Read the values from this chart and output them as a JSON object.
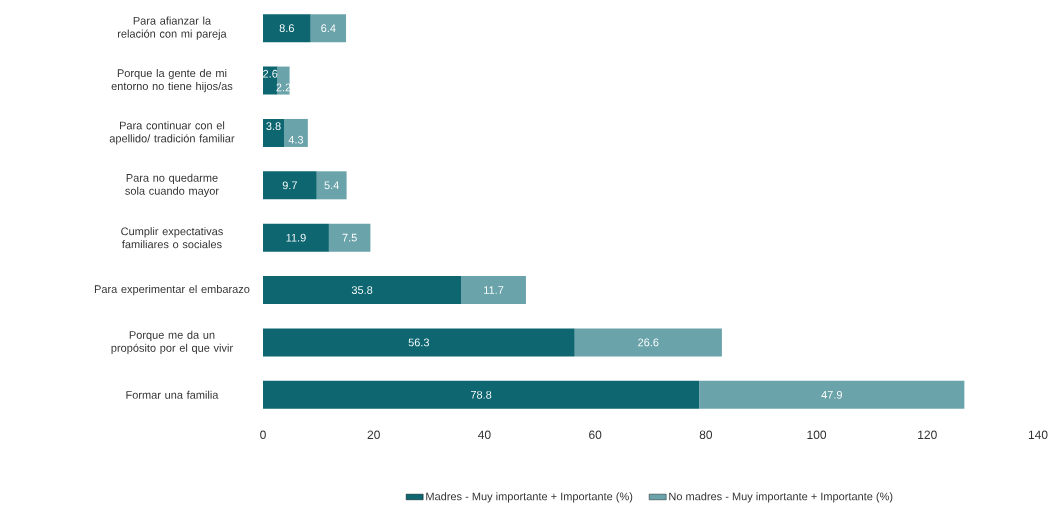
{
  "chart_data": {
    "type": "bar",
    "orientation": "horizontal",
    "stacked": true,
    "categories": [
      "Para afianzar la relación con mi pareja",
      "Porque la gente de mi entorno no tiene hijos/as",
      "Para continuar con el apellido/ tradición familiar",
      "Para no quedarme sola cuando mayor",
      "Cumplir expectativas familiares o sociales",
      "Para experimentar el embarazo",
      "Porque me da un propósito por el que vivir",
      "Formar una familia"
    ],
    "series": [
      {
        "name": "Madres - Muy importante + Importante (%)",
        "color": "#0d6670",
        "values": [
          8.6,
          2.6,
          3.8,
          9.7,
          11.9,
          35.8,
          56.3,
          78.8
        ]
      },
      {
        "name": "No madres - Muy importante + Importante (%)",
        "color": "#6aa3aa",
        "values": [
          6.4,
          2.2,
          4.3,
          5.4,
          7.5,
          11.7,
          26.6,
          47.9
        ]
      }
    ],
    "xlim": [
      0,
      140
    ],
    "xticks": [
      0,
      20,
      40,
      60,
      80,
      100,
      120,
      140
    ],
    "data_labels": true,
    "legend": "bottom"
  }
}
